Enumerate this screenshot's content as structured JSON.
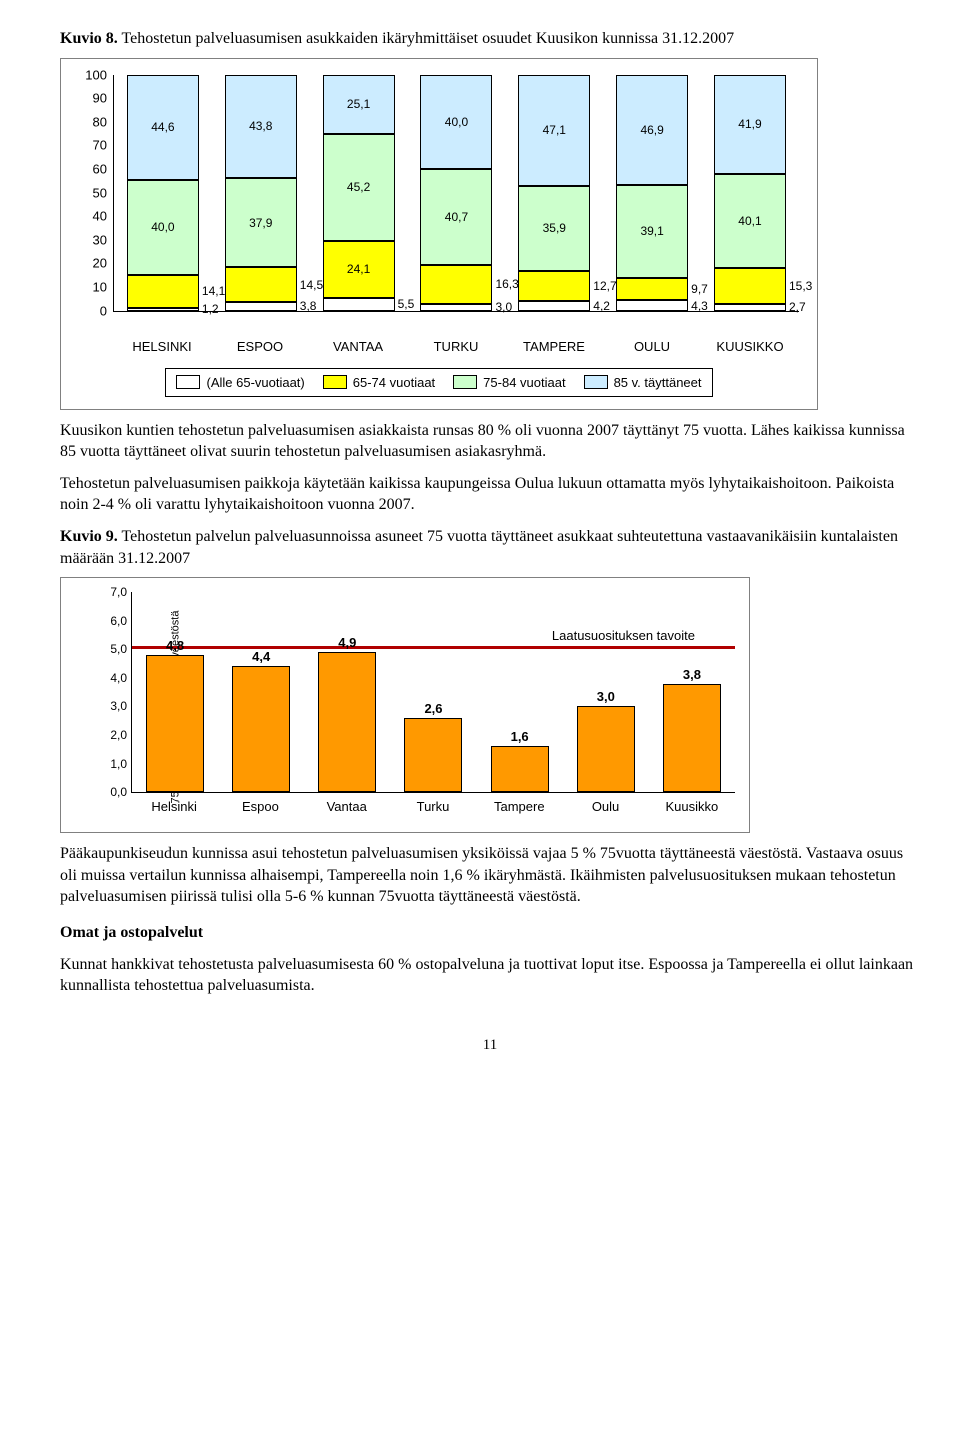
{
  "kuvio8": {
    "caption_prefix": "Kuvio 8.",
    "caption_rest": " Tehostetun palveluasumisen asukkaiden ikäryhmittäiset osuudet  Kuusikon kunnissa 31.12.2007",
    "type": "stacked-bar",
    "ylim": [
      0,
      100
    ],
    "ytick_step": 10,
    "yticks": [
      "0",
      "10",
      "20",
      "30",
      "40",
      "50",
      "60",
      "70",
      "80",
      "90",
      "100"
    ],
    "categories": [
      "HELSINKI",
      "ESPOO",
      "VANTAA",
      "TURKU",
      "TAMPERE",
      "OULU",
      "KUUSIKKO"
    ],
    "series_labels": [
      "(Alle 65-vuotiaat)",
      "65-74 vuotiaat",
      "75-84 vuotiaat",
      "85 v. täyttäneet"
    ],
    "series_colors": [
      "#ffffff",
      "#ffff00",
      "#ccffcc",
      "#ccecff"
    ],
    "stacks": [
      {
        "labels": [
          "1,2",
          "14,1",
          "40,0",
          "44,6"
        ],
        "values": [
          1.2,
          14.1,
          40.0,
          44.6
        ]
      },
      {
        "labels": [
          "3,8",
          "14,5",
          "37,9",
          "43,8"
        ],
        "values": [
          3.8,
          14.5,
          37.9,
          43.8
        ]
      },
      {
        "labels": [
          "5,5",
          "24,1",
          "45,2",
          "25,1"
        ],
        "values": [
          5.5,
          24.1,
          45.2,
          25.1
        ]
      },
      {
        "labels": [
          "3,0",
          "16,3",
          "40,7",
          "40,0"
        ],
        "values": [
          3.0,
          16.3,
          40.7,
          40.0
        ]
      },
      {
        "labels": [
          "4,2",
          "12,7",
          "35,9",
          "47,1"
        ],
        "values": [
          4.2,
          12.7,
          35.9,
          47.1
        ]
      },
      {
        "labels": [
          "4,3",
          "9,7",
          "39,1",
          "46,9"
        ],
        "values": [
          4.3,
          9.7,
          39.1,
          46.9
        ]
      },
      {
        "labels": [
          "2,7",
          "15,3",
          "40,1",
          "41,9"
        ],
        "values": [
          2.7,
          15.3,
          40.1,
          41.9
        ]
      }
    ]
  },
  "para1": "Kuusikon kuntien tehostetun palveluasumisen asiakkaista runsas 80 % oli vuonna 2007 täyttänyt 75 vuotta. Lähes kaikissa kunnissa 85 vuotta täyttäneet olivat suurin tehostetun palveluasumisen asiakasryhmä.",
  "para2": "Tehostetun palveluasumisen paikkoja käytetään kaikissa kaupungeissa Oulua lukuun ottamatta myös lyhytaikaishoitoon. Paikoista noin 2-4 % oli varattu lyhytaikaishoitoon vuonna 2007.",
  "kuvio9": {
    "caption_prefix": "Kuvio 9.",
    "caption_rest": " Tehostetun palvelun palveluasunnoissa asuneet 75 vuotta täyttäneet asukkaat  suhteutettuna vastaavanikäisiin kuntalaisten määrään 31.12.2007",
    "type": "bar",
    "ylim": [
      0,
      7
    ],
    "yticks": [
      "0,0",
      "1,0",
      "2,0",
      "3,0",
      "4,0",
      "5,0",
      "6,0",
      "7,0"
    ],
    "ylabel": "75+ asiakkaat % vastaavasta väestöstä",
    "categories": [
      "Helsinki",
      "Espoo",
      "Vantaa",
      "Turku",
      "Tampere",
      "Oulu",
      "Kuusikko"
    ],
    "values": [
      4.8,
      4.4,
      4.9,
      2.6,
      1.6,
      3.0,
      3.8
    ],
    "value_labels": [
      "4,8",
      "4,4",
      "4,9",
      "2,6",
      "1,6",
      "3,0",
      "3,8"
    ],
    "bar_color": "#ff9900",
    "target_value": 5.0,
    "target_color": "#b00000",
    "target_label": "Laatusuosituksen tavoite"
  },
  "para3": "Pääkaupunkiseudun kunnissa asui tehostetun palveluasumisen yksiköissä vajaa 5 % 75vuotta täyttäneestä väestöstä. Vastaava osuus oli muissa vertailun kunnissa alhaisempi, Tampereella  noin 1,6 % ikäryhmästä. Ikäihmisten palvelusuosituksen mukaan tehostetun palveluasumisen piirissä tulisi olla 5-6 % kunnan 75vuotta täyttäneestä väestöstä.",
  "subhead": "Omat ja ostopalvelut",
  "para4": "Kunnat hankkivat tehostetusta palveluasumisesta 60 % ostopalveluna ja tuottivat loput itse. Espoossa ja Tampereella ei ollut lainkaan kunnallista tehostettua palveluasumista.",
  "page_number": "11"
}
